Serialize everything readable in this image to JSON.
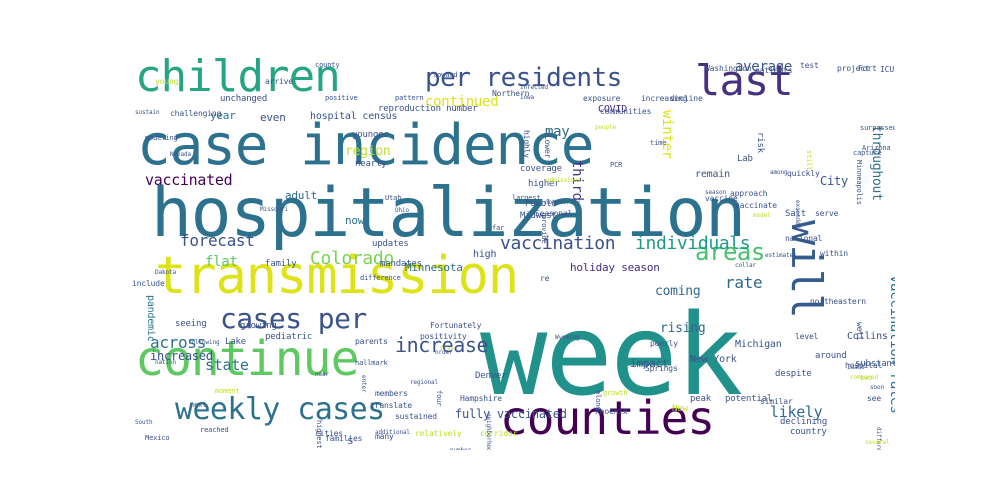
{
  "words": [
    {
      "text": "week",
      "size": 112,
      "color": "#21918c",
      "v": 0
    },
    {
      "text": "hospitalization",
      "size": 68,
      "color": "#2c728e",
      "v": 0
    },
    {
      "text": "case incidence",
      "size": 56,
      "color": "#2c728e",
      "v": 0
    },
    {
      "text": "transmission",
      "size": 52,
      "color": "#dde318",
      "v": 0
    },
    {
      "text": "continue",
      "size": 48,
      "color": "#5ec962",
      "v": 0
    },
    {
      "text": "counties",
      "size": 46,
      "color": "#440154",
      "v": 0
    },
    {
      "text": "children",
      "size": 44,
      "color": "#25a584",
      "v": 0
    },
    {
      "text": "last",
      "size": 42,
      "color": "#46327e",
      "v": 0
    },
    {
      "text": "will",
      "size": 42,
      "color": "#365c8d",
      "v": 1
    },
    {
      "text": "weekly cases",
      "size": 30,
      "color": "#2c728e",
      "v": 0
    },
    {
      "text": "cases per",
      "size": 28,
      "color": "#3b528b",
      "v": 0
    },
    {
      "text": "per residents",
      "size": 26,
      "color": "#3b528b",
      "v": 0
    },
    {
      "text": "areas",
      "size": 24,
      "color": "#48c16e",
      "v": 0
    },
    {
      "text": "increase",
      "size": 20,
      "color": "#3b528b",
      "v": 0
    },
    {
      "text": "vaccination",
      "size": 18,
      "color": "#3b528b",
      "v": 0
    },
    {
      "text": "individuals",
      "size": 18,
      "color": "#1f9a8a",
      "v": 0
    },
    {
      "text": "Colorado",
      "size": 18,
      "color": "#7ad151",
      "v": 0
    },
    {
      "text": "forecast",
      "size": 16,
      "color": "#3b528b",
      "v": 0
    },
    {
      "text": "across",
      "size": 16,
      "color": "#2c728e",
      "v": 0
    },
    {
      "text": "continued",
      "size": 14,
      "color": "#dde318",
      "v": 0
    },
    {
      "text": "average",
      "size": 14,
      "color": "#3b528b",
      "v": 0
    },
    {
      "text": "rate",
      "size": 16,
      "color": "#31688e",
      "v": 0
    },
    {
      "text": "vaccinated",
      "size": 15,
      "color": "#440154",
      "v": 0
    },
    {
      "text": "state",
      "size": 15,
      "color": "#2c728e",
      "v": 0
    },
    {
      "text": "likely",
      "size": 15,
      "color": "#31688e",
      "v": 0
    },
    {
      "text": "vaccination rates",
      "size": 14,
      "color": "#2c728e",
      "v": 1
    },
    {
      "text": "winter",
      "size": 14,
      "color": "#dde318",
      "v": 1
    },
    {
      "text": "third",
      "size": 14,
      "color": "#443983",
      "v": 1
    },
    {
      "text": "throughout",
      "size": 13,
      "color": "#2c728e",
      "v": 1
    },
    {
      "text": "may",
      "size": 14,
      "color": "#31688e",
      "v": 0
    },
    {
      "text": "flat",
      "size": 14,
      "color": "#5ec962",
      "v": 0
    },
    {
      "text": "region",
      "size": 13,
      "color": "#bddf26",
      "v": 0
    },
    {
      "text": "coming",
      "size": 13,
      "color": "#31688e",
      "v": 0
    },
    {
      "text": "rising",
      "size": 13,
      "color": "#31688e",
      "v": 0
    },
    {
      "text": "increased",
      "size": 12,
      "color": "#3b528b",
      "v": 0
    },
    {
      "text": "fully vaccinated",
      "size": 12,
      "color": "#3b528b",
      "v": 0
    },
    {
      "text": "holiday season",
      "size": 11,
      "color": "#472d7b",
      "v": 0
    },
    {
      "text": "Minnesota",
      "size": 11,
      "color": "#2c728e",
      "v": 0
    },
    {
      "text": "City",
      "size": 12,
      "color": "#3b528b",
      "v": 0
    },
    {
      "text": "adult",
      "size": 11,
      "color": "#31688e",
      "v": 0
    },
    {
      "text": "even",
      "size": 11,
      "color": "#3b528b",
      "v": 0
    },
    {
      "text": "year",
      "size": 11,
      "color": "#2c728e",
      "v": 0
    },
    {
      "text": "COVID",
      "size": 10,
      "color": "#472d7b",
      "v": 0
    },
    {
      "text": "impact",
      "size": 11,
      "color": "#3b528b",
      "v": 0
    },
    {
      "text": "remain",
      "size": 10,
      "color": "#3b528b",
      "v": 0
    },
    {
      "text": "Michigan",
      "size": 10,
      "color": "#3b528b",
      "v": 0
    },
    {
      "text": "New York",
      "size": 10,
      "color": "#3b528b",
      "v": 0
    },
    {
      "text": "pandemic",
      "size": 10,
      "color": "#2c728e",
      "v": 1
    },
    {
      "text": "now",
      "size": 11,
      "color": "#2c728e",
      "v": 0
    },
    {
      "text": "Lab",
      "size": 9,
      "color": "#3b528b",
      "v": 0
    },
    {
      "text": "Collins",
      "size": 10,
      "color": "#3b528b",
      "v": 0
    },
    {
      "text": "hospital census",
      "size": 10,
      "color": "#3b528b",
      "v": 0
    },
    {
      "text": "reproduction number",
      "size": 9,
      "color": "#3b528b",
      "v": 0
    },
    {
      "text": "younger",
      "size": 9,
      "color": "#3b528b",
      "v": 0
    },
    {
      "text": "nearly",
      "size": 9,
      "color": "#3b528b",
      "v": 0
    },
    {
      "text": "unchanged",
      "size": 9,
      "color": "#3b528b",
      "v": 0
    },
    {
      "text": "Northern",
      "size": 8,
      "color": "#3b528b",
      "v": 0
    },
    {
      "text": "exposure",
      "size": 8,
      "color": "#3b528b",
      "v": 0
    },
    {
      "text": "increasing",
      "size": 8,
      "color": "#3b528b",
      "v": 0
    },
    {
      "text": "communities",
      "size": 8,
      "color": "#3b528b",
      "v": 0
    },
    {
      "text": "coverage",
      "size": 9,
      "color": "#3b528b",
      "v": 0
    },
    {
      "text": "higher",
      "size": 9,
      "color": "#3b528b",
      "v": 0
    },
    {
      "text": "Pueblo",
      "size": 9,
      "color": "#3b528b",
      "v": 0
    },
    {
      "text": "Midwest",
      "size": 9,
      "color": "#3b528b",
      "v": 0
    },
    {
      "text": "high",
      "size": 10,
      "color": "#3b528b",
      "v": 0
    },
    {
      "text": "updates",
      "size": 9,
      "color": "#3b528b",
      "v": 0
    },
    {
      "text": "mandates",
      "size": 9,
      "color": "#3b528b",
      "v": 0
    },
    {
      "text": "family",
      "size": 9,
      "color": "#3b528b",
      "v": 0
    },
    {
      "text": "include",
      "size": 8,
      "color": "#3b528b",
      "v": 0
    },
    {
      "text": "seeing",
      "size": 9,
      "color": "#3b528b",
      "v": 0
    },
    {
      "text": "growing",
      "size": 9,
      "color": "#3b528b",
      "v": 0
    },
    {
      "text": "Lake",
      "size": 9,
      "color": "#3b528b",
      "v": 0
    },
    {
      "text": "pediatric",
      "size": 9,
      "color": "#3b528b",
      "v": 0
    },
    {
      "text": "parents",
      "size": 8,
      "color": "#3b528b",
      "v": 0
    },
    {
      "text": "positivity",
      "size": 8,
      "color": "#3b528b",
      "v": 0
    },
    {
      "text": "Fortunately",
      "size": 8,
      "color": "#3b528b",
      "v": 0
    },
    {
      "text": "members",
      "size": 8,
      "color": "#3b528b",
      "v": 0
    },
    {
      "text": "translate",
      "size": 8,
      "color": "#3b528b",
      "v": 0
    },
    {
      "text": "Hampshire",
      "size": 8,
      "color": "#3b528b",
      "v": 0
    },
    {
      "text": "Denver",
      "size": 9,
      "color": "#3b528b",
      "v": 0
    },
    {
      "text": "sustained",
      "size": 8,
      "color": "#3b528b",
      "v": 0
    },
    {
      "text": "cities",
      "size": 8,
      "color": "#3b528b",
      "v": 0
    },
    {
      "text": "families",
      "size": 8,
      "color": "#3b528b",
      "v": 0
    },
    {
      "text": "many",
      "size": 8,
      "color": "#3b528b",
      "v": 0
    },
    {
      "text": "relatively",
      "size": 8,
      "color": "#bddf26",
      "v": 0
    },
    {
      "text": "corridor",
      "size": 8,
      "color": "#bddf26",
      "v": 0
    },
    {
      "text": "potential",
      "size": 9,
      "color": "#3b528b",
      "v": 0
    },
    {
      "text": "peak",
      "size": 9,
      "color": "#3b528b",
      "v": 0
    },
    {
      "text": "declining",
      "size": 9,
      "color": "#3b528b",
      "v": 0
    },
    {
      "text": "country",
      "size": 9,
      "color": "#3b528b",
      "v": 0
    },
    {
      "text": "similar",
      "size": 8,
      "color": "#3b528b",
      "v": 0
    },
    {
      "text": "despite",
      "size": 9,
      "color": "#3b528b",
      "v": 0
    },
    {
      "text": "around",
      "size": 9,
      "color": "#3b528b",
      "v": 0
    },
    {
      "text": "hospital",
      "size": 8,
      "color": "#3b528b",
      "v": 0
    },
    {
      "text": "level",
      "size": 8,
      "color": "#3b528b",
      "v": 0
    },
    {
      "text": "substantial",
      "size": 9,
      "color": "#3b528b",
      "v": 0
    },
    {
      "text": "northeastern",
      "size": 8,
      "color": "#3b528b",
      "v": 0
    },
    {
      "text": "national",
      "size": 8,
      "color": "#3b528b",
      "v": 0
    },
    {
      "text": "within",
      "size": 8,
      "color": "#3b528b",
      "v": 0
    },
    {
      "text": "approach",
      "size": 8,
      "color": "#3b528b",
      "v": 0
    },
    {
      "text": "vaccinate",
      "size": 8,
      "color": "#3b528b",
      "v": 0
    },
    {
      "text": "vaccine",
      "size": 8,
      "color": "#3b528b",
      "v": 0
    },
    {
      "text": "Salt",
      "size": 9,
      "color": "#3b528b",
      "v": 0
    },
    {
      "text": "serve",
      "size": 8,
      "color": "#3b528b",
      "v": 0
    },
    {
      "text": "risk",
      "size": 9,
      "color": "#3b528b",
      "v": 1
    },
    {
      "text": "project",
      "size": 8,
      "color": "#3b528b",
      "v": 0
    },
    {
      "text": "test",
      "size": 8,
      "color": "#3b528b",
      "v": 0
    },
    {
      "text": "ICU",
      "size": 8,
      "color": "#3b528b",
      "v": 0
    },
    {
      "text": "patients",
      "size": 8,
      "color": "#3b528b",
      "v": 0
    },
    {
      "text": "Washington",
      "size": 8,
      "color": "#3b528b",
      "v": 0
    },
    {
      "text": "decline",
      "size": 8,
      "color": "#3b528b",
      "v": 0
    },
    {
      "text": "Fort",
      "size": 8,
      "color": "#3b528b",
      "v": 0
    },
    {
      "text": "surpassed",
      "size": 7,
      "color": "#3b528b",
      "v": 0
    },
    {
      "text": "Arizona",
      "size": 7,
      "color": "#3b528b",
      "v": 0
    },
    {
      "text": "capture",
      "size": 7,
      "color": "#3b528b",
      "v": 0
    },
    {
      "text": "Minneapolis",
      "size": 7,
      "color": "#3b528b",
      "v": 1
    },
    {
      "text": "highly",
      "size": 8,
      "color": "#3b528b",
      "v": 1
    },
    {
      "text": "Lower",
      "size": 8,
      "color": "#3b528b",
      "v": 1
    },
    {
      "text": "quickly",
      "size": 8,
      "color": "#3b528b",
      "v": 0
    },
    {
      "text": "poorly",
      "size": 8,
      "color": "#3b528b",
      "v": 0
    },
    {
      "text": "Springs",
      "size": 8,
      "color": "#3b528b",
      "v": 0
    },
    {
      "text": "Phoenix",
      "size": 8,
      "color": "#3b528b",
      "v": 0
    },
    {
      "text": "growth",
      "size": 7,
      "color": "#bddf26",
      "v": 0
    },
    {
      "text": "New",
      "size": 9,
      "color": "#bddf26",
      "v": 0
    },
    {
      "text": "PCR",
      "size": 7,
      "color": "#3b528b",
      "v": 0
    },
    {
      "text": "time",
      "size": 7,
      "color": "#3b528b",
      "v": 0
    },
    {
      "text": "largest",
      "size": 7,
      "color": "#3b528b",
      "v": 0
    },
    {
      "text": "noteworthy",
      "size": 6,
      "color": "#3b528b",
      "v": 0
    },
    {
      "text": "Seasonal",
      "size": 8,
      "color": "#3b528b",
      "v": 0
    },
    {
      "text": "provide",
      "size": 7,
      "color": "#3b528b",
      "v": 1
    },
    {
      "text": "challenging",
      "size": 8,
      "color": "#3b528b",
      "v": 0
    },
    {
      "text": "modeling",
      "size": 7,
      "color": "#3b528b",
      "v": 0
    },
    {
      "text": "positive",
      "size": 7,
      "color": "#3b528b",
      "v": 0
    },
    {
      "text": "arrive",
      "size": 8,
      "color": "#3b528b",
      "v": 0
    },
    {
      "text": "county",
      "size": 7,
      "color": "#3b528b",
      "v": 0
    },
    {
      "text": "young",
      "size": 8,
      "color": "#bddf26",
      "v": 0
    },
    {
      "text": "pattern",
      "size": 7,
      "color": "#3b528b",
      "v": 0
    },
    {
      "text": "toward",
      "size": 7,
      "color": "#3b528b",
      "v": 0
    },
    {
      "text": "difference",
      "size": 7,
      "color": "#3b528b",
      "v": 0
    },
    {
      "text": "hallmark",
      "size": 7,
      "color": "#3b528b",
      "v": 0
    },
    {
      "text": "moment",
      "size": 7,
      "color": "#bddf26",
      "v": 0
    },
    {
      "text": "next",
      "size": 7,
      "color": "#3b528b",
      "v": 0
    },
    {
      "text": "reached",
      "size": 7,
      "color": "#3b528b",
      "v": 0
    },
    {
      "text": "Mexico",
      "size": 7,
      "color": "#3b528b",
      "v": 0
    },
    {
      "text": "South",
      "size": 6,
      "color": "#3b528b",
      "v": 0
    },
    {
      "text": "highest",
      "size": 7,
      "color": "#3b528b",
      "v": 1
    },
    {
      "text": "four",
      "size": 7,
      "color": "#3b528b",
      "v": 1
    },
    {
      "text": "along",
      "size": 7,
      "color": "#3b528b",
      "v": 1
    },
    {
      "text": "Wyoming",
      "size": 6,
      "color": "#3b528b",
      "v": 0
    },
    {
      "text": "nation",
      "size": 6,
      "color": "#3b528b",
      "v": 0
    },
    {
      "text": "following",
      "size": 6,
      "color": "#3b528b",
      "v": 0
    },
    {
      "text": "near",
      "size": 6,
      "color": "#3b528b",
      "v": 0
    },
    {
      "text": "enter",
      "size": 6,
      "color": "#3b528b",
      "v": 1
    },
    {
      "text": "regional",
      "size": 6,
      "color": "#3b528b",
      "v": 0
    },
    {
      "text": "order",
      "size": 6,
      "color": "#3b528b",
      "v": 0
    },
    {
      "text": "re",
      "size": 8,
      "color": "#3b528b",
      "v": 0
    },
    {
      "text": "Utah",
      "size": 7,
      "color": "#3b528b",
      "v": 0
    },
    {
      "text": "Ohio",
      "size": 6,
      "color": "#3b528b",
      "v": 0
    },
    {
      "text": "Missouri",
      "size": 6,
      "color": "#3b528b",
      "v": 0
    },
    {
      "text": "Dakota",
      "size": 6,
      "color": "#3b528b",
      "v": 0
    },
    {
      "text": "sustain",
      "size": 6,
      "color": "#3b528b",
      "v": 0
    },
    {
      "text": "Nevada",
      "size": 6,
      "color": "#3b528b",
      "v": 0
    },
    {
      "text": "infected",
      "size": 6,
      "color": "#3b528b",
      "v": 0
    },
    {
      "text": "Iowa",
      "size": 6,
      "color": "#3b528b",
      "v": 0
    },
    {
      "text": "Idaho",
      "size": 6,
      "color": "#3b528b",
      "v": 0
    },
    {
      "text": "two",
      "size": 7,
      "color": "#bddf26",
      "v": 0
    },
    {
      "text": "soon",
      "size": 6,
      "color": "#3b528b",
      "v": 0
    },
    {
      "text": "see",
      "size": 8,
      "color": "#3b528b",
      "v": 0
    },
    {
      "text": "well",
      "size": 8,
      "color": "#3b528b",
      "v": 1
    },
    {
      "text": "every",
      "size": 6,
      "color": "#3b528b",
      "v": 0
    },
    {
      "text": "compared",
      "size": 6,
      "color": "#bddf26",
      "v": 0
    },
    {
      "text": "still",
      "size": 7,
      "color": "#bddf26",
      "v": 1
    },
    {
      "text": "among",
      "size": 6,
      "color": "#3b528b",
      "v": 0
    },
    {
      "text": "exceeded",
      "size": 6,
      "color": "#3b528b",
      "v": 1
    },
    {
      "text": "admissions",
      "size": 6,
      "color": "#bddf26",
      "v": 0
    },
    {
      "text": "far",
      "size": 7,
      "color": "#3b528b",
      "v": 0
    },
    {
      "text": "five",
      "size": 6,
      "color": "#bddf26",
      "v": 0
    },
    {
      "text": "differential",
      "size": 6,
      "color": "#3b528b",
      "v": 1
    },
    {
      "text": "several",
      "size": 6,
      "color": "#bddf26",
      "v": 0
    },
    {
      "text": "model",
      "size": 6,
      "color": "#bddf26",
      "v": 0
    },
    {
      "text": "people",
      "size": 6,
      "color": "#bddf26",
      "v": 0
    },
    {
      "text": "collar",
      "size": 6,
      "color": "#3b528b",
      "v": 0
    },
    {
      "text": "season",
      "size": 6,
      "color": "#3b528b",
      "v": 0
    },
    {
      "text": "estimates",
      "size": 6,
      "color": "#3b528b",
      "v": 0
    },
    {
      "text": "number",
      "size": 6,
      "color": "#3b528b",
      "v": 0
    },
    {
      "text": "neighborhoods",
      "size": 6,
      "color": "#3b528b",
      "v": 1
    },
    {
      "text": "additional",
      "size": 6,
      "color": "#3b528b",
      "v": 0
    },
    {
      "text": "s",
      "size": 11,
      "color": "#3b528b",
      "v": 0
    }
  ]
}
